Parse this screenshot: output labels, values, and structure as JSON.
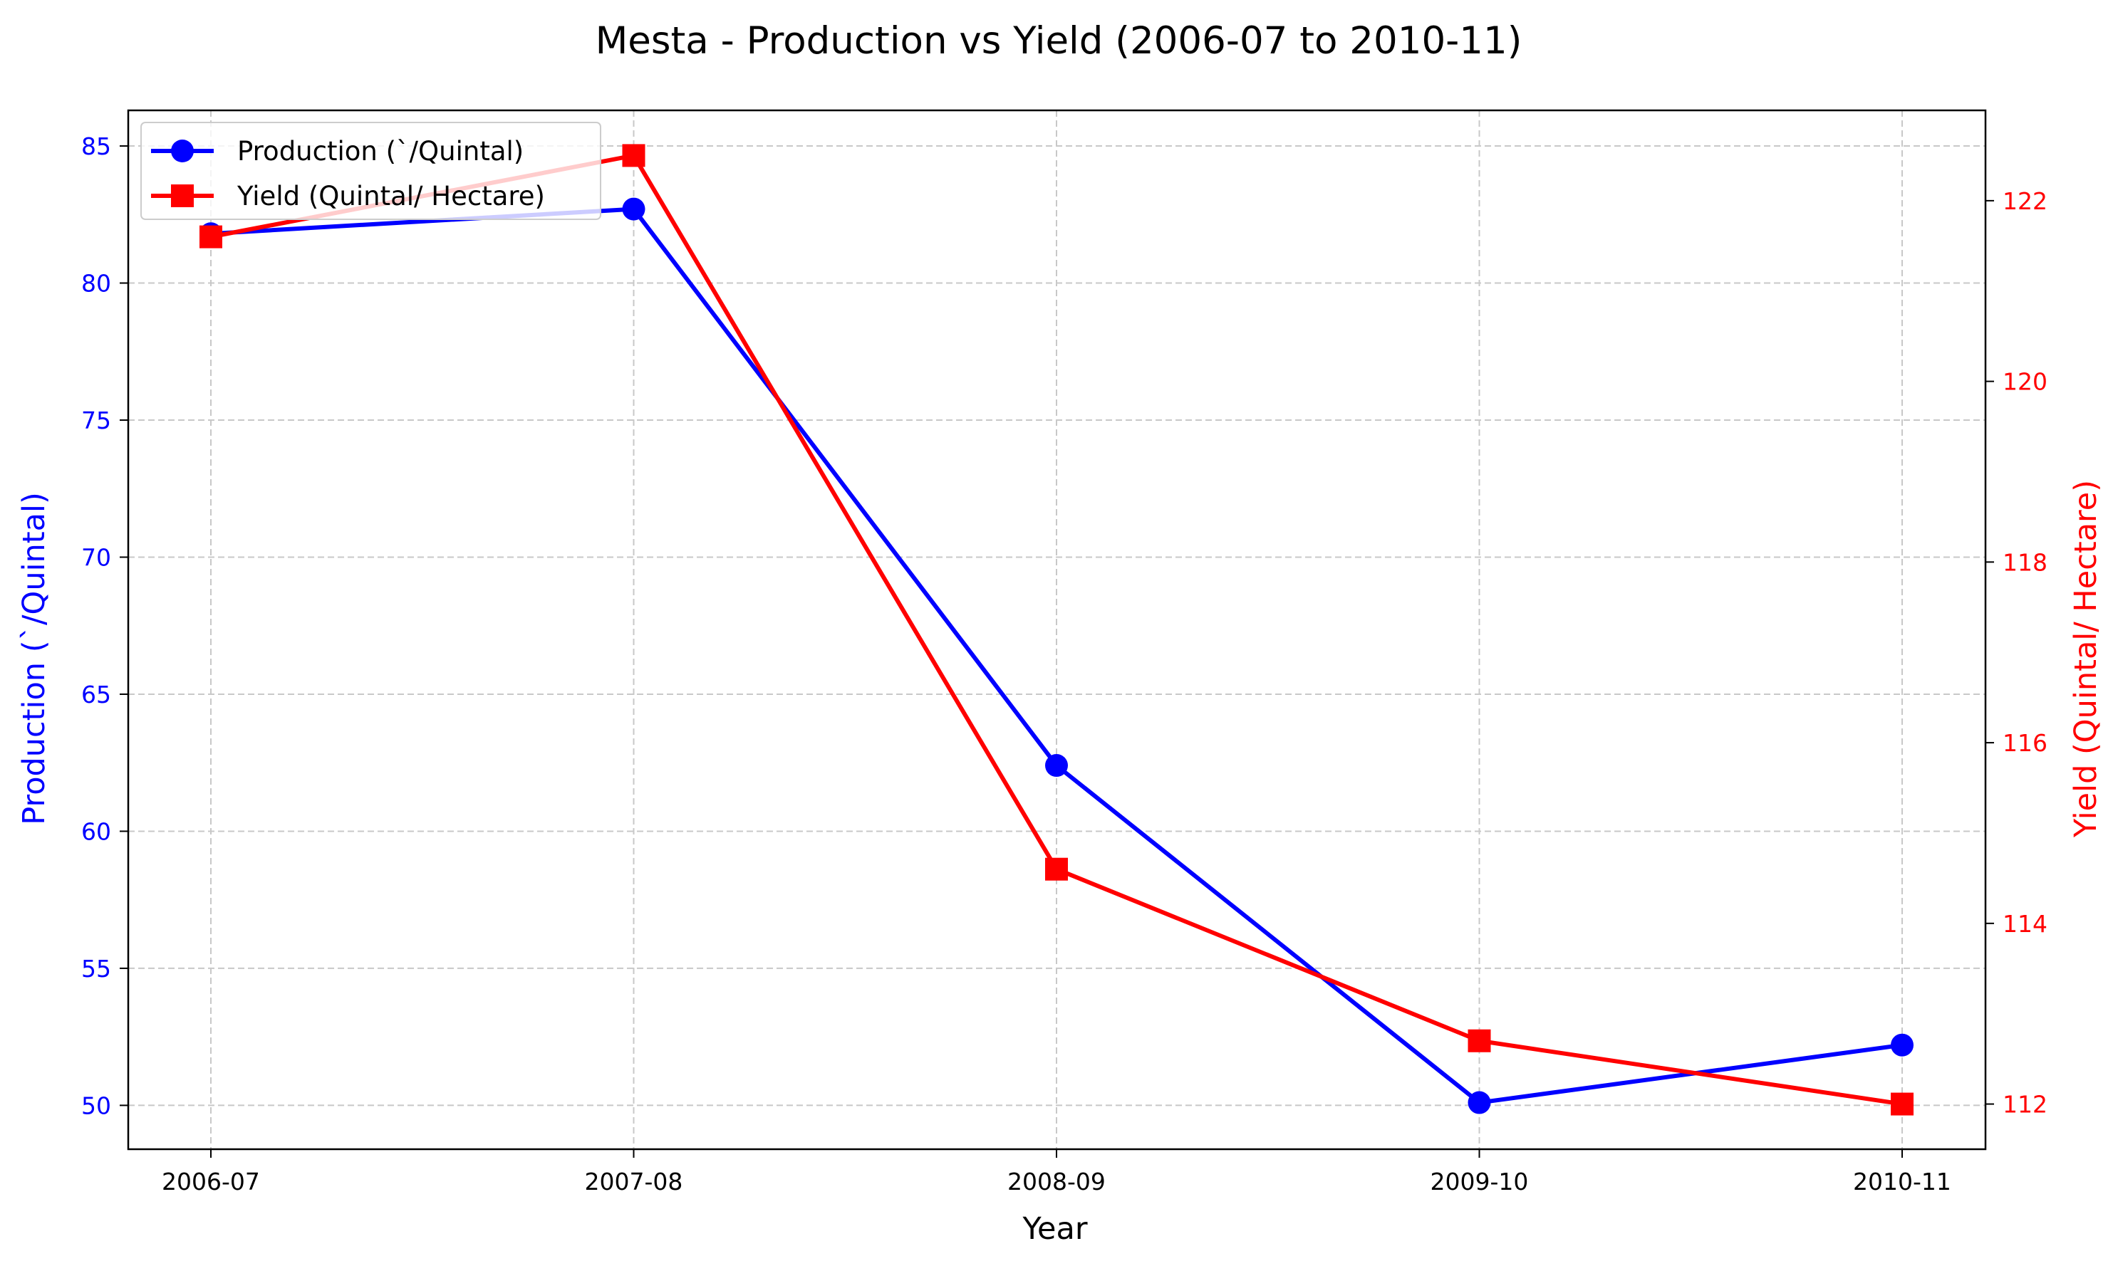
{
  "chart_data": {
    "type": "line",
    "title": "Mesta - Production vs Yield (2006-07 to 2010-11)",
    "xlabel": "Year",
    "categories": [
      "2006-07",
      "2007-08",
      "2008-09",
      "2009-10",
      "2010-11"
    ],
    "grid": true,
    "legend_position": "top-left",
    "y_left": {
      "label": "Production (`/Quintal)",
      "color": "#0000ff",
      "ticks": [
        50,
        55,
        60,
        65,
        70,
        75,
        80,
        85
      ],
      "range": [
        48.4,
        86.3
      ]
    },
    "y_right": {
      "label": "Yield (Quintal/ Hectare)",
      "color": "#ff0000",
      "ticks": [
        112,
        114,
        116,
        118,
        120,
        122
      ],
      "range": [
        111.5,
        123.0
      ]
    },
    "series": [
      {
        "name": "Production (`/Quintal)",
        "axis": "left",
        "color": "#0000ff",
        "marker": "circle",
        "values": [
          81.8,
          82.7,
          62.4,
          50.1,
          52.2
        ]
      },
      {
        "name": "Yield (Quintal/ Hectare)",
        "axis": "right",
        "color": "#ff0000",
        "marker": "square",
        "values": [
          121.6,
          122.5,
          114.6,
          112.7,
          112.0
        ]
      }
    ]
  }
}
